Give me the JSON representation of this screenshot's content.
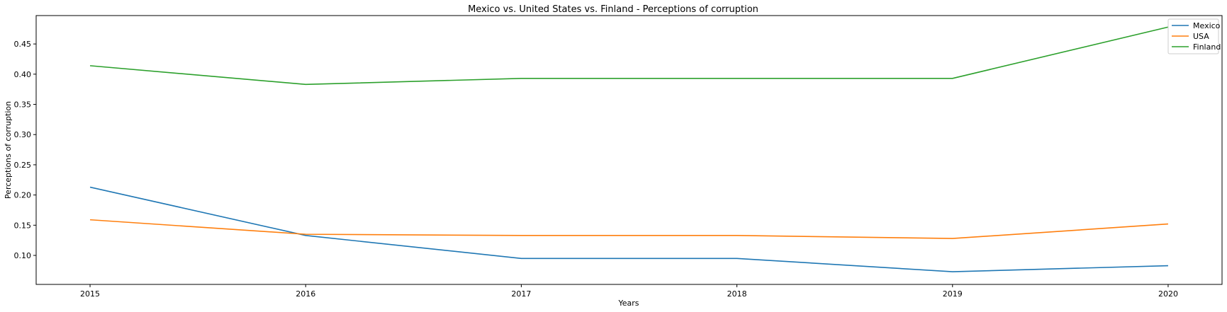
{
  "chart_data": {
    "type": "line",
    "title": "Mexico vs. United States vs. Finland - Perceptions of corruption",
    "xlabel": "Years",
    "ylabel": "Perceptions of corruption",
    "x": [
      2015,
      2016,
      2017,
      2018,
      2019,
      2020
    ],
    "x_tick_labels": [
      "2015",
      "2016",
      "2017",
      "2018",
      "2019",
      "2020"
    ],
    "xlim": [
      2014.75,
      2020.25
    ],
    "ylim": [
      0.052,
      0.497
    ],
    "y_ticks": [
      0.1,
      0.15,
      0.2,
      0.25,
      0.3,
      0.35,
      0.4,
      0.45
    ],
    "y_tick_labels": [
      "0.10",
      "0.15",
      "0.20",
      "0.25",
      "0.30",
      "0.35",
      "0.40",
      "0.45"
    ],
    "grid": false,
    "legend_position": "top-right",
    "series": [
      {
        "name": "Mexico",
        "color": "#1f77b4",
        "values": [
          0.213,
          0.133,
          0.095,
          0.095,
          0.073,
          0.083
        ]
      },
      {
        "name": "USA",
        "color": "#ff7f0e",
        "values": [
          0.159,
          0.135,
          0.133,
          0.133,
          0.128,
          0.152
        ]
      },
      {
        "name": "Finland",
        "color": "#2ca02c",
        "values": [
          0.414,
          0.383,
          0.393,
          0.393,
          0.393,
          0.478
        ]
      }
    ]
  }
}
